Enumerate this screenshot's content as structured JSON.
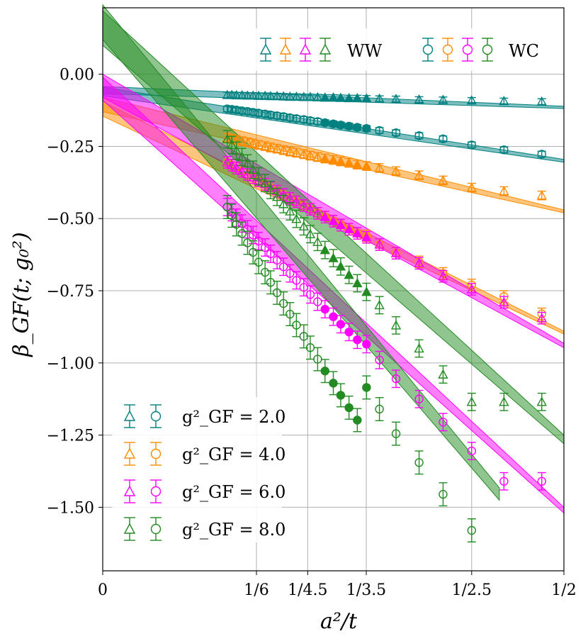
{
  "chart_data": {
    "type": "scatter",
    "title": "",
    "xlabel": "a²/t",
    "ylabel": "β_GF(t; g₀²)",
    "xlim": [
      0,
      0.5
    ],
    "ylim": [
      -1.72,
      0.23
    ],
    "grid": true,
    "x_ticks": [
      {
        "value": 0,
        "label": "0"
      },
      {
        "value": 0.16667,
        "label": "1/6"
      },
      {
        "value": 0.22222,
        "label": "1/4.5"
      },
      {
        "value": 0.28571,
        "label": "1/3.5"
      },
      {
        "value": 0.4,
        "label": "1/2.5"
      },
      {
        "value": 0.5,
        "label": "1/2"
      }
    ],
    "x_grid_extra": [
      0.16667,
      0.22222,
      0.28571,
      0.4,
      0.5
    ],
    "y_ticks": [
      {
        "value": 0.0,
        "label": "0.00"
      },
      {
        "value": -0.25,
        "label": "−0.25"
      },
      {
        "value": -0.5,
        "label": "−0.50"
      },
      {
        "value": -0.75,
        "label": "−0.75"
      },
      {
        "value": -1.0,
        "label": "−1.00"
      },
      {
        "value": -1.25,
        "label": "−1.25"
      },
      {
        "value": -1.5,
        "label": "−1.50"
      }
    ],
    "legend_top": {
      "position": "top-right",
      "ww_label": "WW",
      "wc_label": "WC",
      "colors": [
        "#008080",
        "#ff8c00",
        "#ff00ff",
        "#228b22"
      ]
    },
    "legend_bottom": {
      "position": "lower-left",
      "entries": [
        {
          "label": "g²_GF = 2.0",
          "color": "#008080"
        },
        {
          "label": "g²_GF = 4.0",
          "color": "#ff8c00"
        },
        {
          "label": "g²_GF = 6.0",
          "color": "#ff00ff"
        },
        {
          "label": "g²_GF = 8.0",
          "color": "#228b22"
        }
      ]
    },
    "series": [
      {
        "name": "g2=2.0 WW",
        "color": "#008080",
        "marker": "triangle",
        "x": [
          0.135,
          0.14,
          0.145,
          0.151,
          0.157,
          0.163,
          0.169,
          0.176,
          0.182,
          0.189,
          0.196,
          0.203,
          0.21,
          0.218,
          0.225,
          0.233,
          0.241,
          0.25,
          0.258,
          0.267,
          0.276,
          0.286,
          0.3,
          0.318,
          0.343,
          0.369,
          0.4,
          0.435,
          0.476
        ],
        "y": [
          -0.072,
          -0.072,
          -0.073,
          -0.073,
          -0.074,
          -0.074,
          -0.075,
          -0.075,
          -0.076,
          -0.076,
          -0.077,
          -0.078,
          -0.078,
          -0.079,
          -0.079,
          -0.08,
          -0.081,
          -0.081,
          -0.082,
          -0.083,
          -0.083,
          -0.084,
          -0.085,
          -0.086,
          -0.088,
          -0.089,
          -0.091,
          -0.093,
          -0.095
        ],
        "err": [
          0.01,
          0.01,
          0.01,
          0.01,
          0.01,
          0.01,
          0.01,
          0.01,
          0.01,
          0.01,
          0.01,
          0.01,
          0.01,
          0.01,
          0.01,
          0.01,
          0.01,
          0.01,
          0.01,
          0.01,
          0.01,
          0.01,
          0.01,
          0.01,
          0.01,
          0.01,
          0.01,
          0.01,
          0.01
        ],
        "filled_x_range": [
          0.24,
          0.286
        ]
      },
      {
        "name": "g2=2.0 WC",
        "color": "#008080",
        "marker": "circle",
        "x": [
          0.135,
          0.14,
          0.145,
          0.151,
          0.157,
          0.163,
          0.169,
          0.176,
          0.182,
          0.189,
          0.196,
          0.203,
          0.21,
          0.218,
          0.225,
          0.233,
          0.241,
          0.25,
          0.258,
          0.267,
          0.276,
          0.286,
          0.3,
          0.318,
          0.343,
          0.369,
          0.4,
          0.435,
          0.476
        ],
        "y": [
          -0.12,
          -0.122,
          -0.124,
          -0.127,
          -0.129,
          -0.132,
          -0.135,
          -0.138,
          -0.141,
          -0.144,
          -0.147,
          -0.151,
          -0.154,
          -0.157,
          -0.161,
          -0.164,
          -0.168,
          -0.172,
          -0.176,
          -0.18,
          -0.184,
          -0.188,
          -0.195,
          -0.203,
          -0.213,
          -0.224,
          -0.245,
          -0.262,
          -0.277
        ],
        "err": [
          0.01,
          0.01,
          0.01,
          0.01,
          0.01,
          0.01,
          0.01,
          0.01,
          0.01,
          0.01,
          0.01,
          0.01,
          0.01,
          0.01,
          0.01,
          0.01,
          0.01,
          0.01,
          0.01,
          0.01,
          0.01,
          0.01,
          0.01,
          0.01,
          0.01,
          0.01,
          0.01,
          0.01,
          0.01
        ],
        "filled_x_range": [
          0.24,
          0.286
        ]
      },
      {
        "name": "g2=4.0 WW",
        "color": "#ff8c00",
        "marker": "triangle",
        "x": [
          0.135,
          0.14,
          0.145,
          0.151,
          0.157,
          0.163,
          0.169,
          0.176,
          0.182,
          0.189,
          0.196,
          0.203,
          0.21,
          0.218,
          0.225,
          0.233,
          0.241,
          0.25,
          0.258,
          0.267,
          0.276,
          0.286,
          0.3,
          0.318,
          0.343,
          0.369,
          0.4,
          0.435,
          0.476
        ],
        "y": [
          -0.22,
          -0.224,
          -0.228,
          -0.232,
          -0.236,
          -0.24,
          -0.245,
          -0.249,
          -0.254,
          -0.258,
          -0.263,
          -0.268,
          -0.272,
          -0.277,
          -0.282,
          -0.287,
          -0.292,
          -0.297,
          -0.302,
          -0.307,
          -0.313,
          -0.318,
          -0.325,
          -0.336,
          -0.35,
          -0.368,
          -0.393,
          -0.405,
          -0.42
        ],
        "err": [
          0.015,
          0.015,
          0.015,
          0.015,
          0.015,
          0.015,
          0.015,
          0.015,
          0.015,
          0.015,
          0.015,
          0.015,
          0.015,
          0.015,
          0.015,
          0.015,
          0.015,
          0.015,
          0.015,
          0.015,
          0.015,
          0.015,
          0.015,
          0.015,
          0.015,
          0.015,
          0.015,
          0.015,
          0.015
        ],
        "filled_x_range": [
          0.24,
          0.286
        ]
      },
      {
        "name": "g2=4.0 WC",
        "color": "#ff8c00",
        "marker": "circle",
        "x": [
          0.135,
          0.14,
          0.145,
          0.151,
          0.157,
          0.163,
          0.169,
          0.176,
          0.182,
          0.189,
          0.196,
          0.203,
          0.21,
          0.218,
          0.225,
          0.233,
          0.241,
          0.25,
          0.258,
          0.267,
          0.276,
          0.286,
          0.3,
          0.318,
          0.343,
          0.369,
          0.4,
          0.435,
          0.476
        ],
        "y": [
          -0.305,
          -0.315,
          -0.325,
          -0.336,
          -0.347,
          -0.358,
          -0.369,
          -0.381,
          -0.393,
          -0.405,
          -0.417,
          -0.43,
          -0.442,
          -0.455,
          -0.468,
          -0.482,
          -0.495,
          -0.509,
          -0.523,
          -0.537,
          -0.551,
          -0.56,
          -0.59,
          -0.62,
          -0.65,
          -0.69,
          -0.73,
          -0.77,
          -0.83
        ],
        "err": [
          0.02,
          0.02,
          0.02,
          0.02,
          0.02,
          0.02,
          0.02,
          0.02,
          0.02,
          0.02,
          0.02,
          0.02,
          0.02,
          0.02,
          0.02,
          0.02,
          0.02,
          0.02,
          0.02,
          0.02,
          0.02,
          0.02,
          0.02,
          0.02,
          0.02,
          0.02,
          0.02,
          0.02,
          0.02
        ],
        "filled_x_range": [
          0.24,
          0.286
        ]
      },
      {
        "name": "g2=6.0 WW",
        "color": "#ff00ff",
        "marker": "triangle",
        "x": [
          0.135,
          0.14,
          0.145,
          0.151,
          0.157,
          0.163,
          0.169,
          0.176,
          0.182,
          0.189,
          0.196,
          0.203,
          0.21,
          0.218,
          0.225,
          0.233,
          0.241,
          0.25,
          0.258,
          0.267,
          0.276,
          0.286,
          0.3,
          0.318,
          0.343,
          0.369,
          0.4,
          0.435,
          0.476
        ],
        "y": [
          -0.305,
          -0.315,
          -0.325,
          -0.336,
          -0.347,
          -0.358,
          -0.369,
          -0.381,
          -0.393,
          -0.405,
          -0.417,
          -0.43,
          -0.442,
          -0.455,
          -0.468,
          -0.482,
          -0.495,
          -0.509,
          -0.523,
          -0.537,
          -0.551,
          -0.565,
          -0.59,
          -0.62,
          -0.655,
          -0.7,
          -0.745,
          -0.79,
          -0.845
        ],
        "err": [
          0.02,
          0.02,
          0.02,
          0.02,
          0.02,
          0.02,
          0.02,
          0.02,
          0.02,
          0.02,
          0.02,
          0.02,
          0.02,
          0.02,
          0.02,
          0.02,
          0.02,
          0.02,
          0.02,
          0.02,
          0.02,
          0.02,
          0.02,
          0.02,
          0.02,
          0.02,
          0.02,
          0.02,
          0.02
        ],
        "filled_x_range": [
          0.24,
          0.286
        ]
      },
      {
        "name": "g2=6.0 WC",
        "color": "#ff00ff",
        "marker": "circle",
        "x": [
          0.135,
          0.14,
          0.145,
          0.151,
          0.157,
          0.163,
          0.169,
          0.176,
          0.182,
          0.189,
          0.196,
          0.203,
          0.21,
          0.218,
          0.225,
          0.233,
          0.241,
          0.25,
          0.258,
          0.267,
          0.276,
          0.286,
          0.3,
          0.318,
          0.343,
          0.369,
          0.4,
          0.435,
          0.476
        ],
        "y": [
          -0.46,
          -0.478,
          -0.497,
          -0.517,
          -0.537,
          -0.557,
          -0.578,
          -0.6,
          -0.622,
          -0.644,
          -0.667,
          -0.69,
          -0.714,
          -0.738,
          -0.763,
          -0.788,
          -0.814,
          -0.84,
          -0.866,
          -0.893,
          -0.92,
          -0.935,
          -0.99,
          -1.055,
          -1.125,
          -1.205,
          -1.305,
          -1.41,
          -1.41
        ],
        "err": [
          0.03,
          0.03,
          0.03,
          0.03,
          0.03,
          0.03,
          0.03,
          0.03,
          0.03,
          0.03,
          0.03,
          0.03,
          0.03,
          0.03,
          0.03,
          0.03,
          0.03,
          0.03,
          0.03,
          0.03,
          0.03,
          0.03,
          0.03,
          0.03,
          0.03,
          0.03,
          0.03,
          0.03,
          0.03
        ],
        "filled_x_range": [
          0.24,
          0.286
        ]
      },
      {
        "name": "g2=8.0 WW",
        "color": "#228b22",
        "marker": "triangle",
        "x": [
          0.135,
          0.14,
          0.145,
          0.151,
          0.157,
          0.163,
          0.169,
          0.176,
          0.182,
          0.189,
          0.196,
          0.203,
          0.21,
          0.218,
          0.225,
          0.233,
          0.241,
          0.25,
          0.258,
          0.267,
          0.276,
          0.286,
          0.3,
          0.318,
          0.343,
          0.369,
          0.4,
          0.435,
          0.476
        ],
        "y": [
          -0.225,
          -0.245,
          -0.265,
          -0.287,
          -0.309,
          -0.331,
          -0.354,
          -0.377,
          -0.401,
          -0.425,
          -0.45,
          -0.475,
          -0.501,
          -0.527,
          -0.554,
          -0.581,
          -0.609,
          -0.637,
          -0.666,
          -0.695,
          -0.724,
          -0.754,
          -0.8,
          -0.87,
          -0.95,
          -1.04,
          -1.135,
          -1.135,
          -1.135
        ],
        "err": [
          0.03,
          0.03,
          0.03,
          0.03,
          0.03,
          0.03,
          0.03,
          0.03,
          0.03,
          0.03,
          0.03,
          0.03,
          0.03,
          0.03,
          0.03,
          0.03,
          0.03,
          0.03,
          0.03,
          0.03,
          0.03,
          0.03,
          0.03,
          0.03,
          0.03,
          0.03,
          0.03,
          0.03,
          0.03
        ],
        "filled_x_range": [
          0.24,
          0.286
        ]
      },
      {
        "name": "g2=8.0 WC",
        "color": "#228b22",
        "marker": "circle",
        "x": [
          0.135,
          0.14,
          0.145,
          0.151,
          0.157,
          0.163,
          0.169,
          0.176,
          0.182,
          0.189,
          0.196,
          0.203,
          0.21,
          0.218,
          0.225,
          0.233,
          0.241,
          0.25,
          0.258,
          0.267,
          0.276,
          0.286,
          0.3,
          0.318,
          0.343,
          0.369,
          0.4
        ],
        "y": [
          -0.46,
          -0.49,
          -0.52,
          -0.552,
          -0.584,
          -0.617,
          -0.651,
          -0.686,
          -0.721,
          -0.757,
          -0.794,
          -0.831,
          -0.869,
          -0.908,
          -0.947,
          -0.987,
          -1.028,
          -1.07,
          -1.112,
          -1.155,
          -1.198,
          -1.085,
          -1.16,
          -1.245,
          -1.345,
          -1.455,
          -1.58
        ],
        "err": [
          0.04,
          0.04,
          0.04,
          0.04,
          0.04,
          0.04,
          0.04,
          0.04,
          0.04,
          0.04,
          0.04,
          0.04,
          0.04,
          0.04,
          0.04,
          0.04,
          0.04,
          0.04,
          0.04,
          0.04,
          0.04,
          0.04,
          0.04,
          0.04,
          0.04,
          0.04,
          0.04
        ],
        "filled_x_range": [
          0.24,
          0.286
        ]
      }
    ],
    "fit_bands": [
      {
        "color": "#008080",
        "x_range": [
          0,
          0.5
        ],
        "y_at_0": -0.055,
        "y_at_half": -0.115,
        "width_at_0": 0.025,
        "width_at_half": 0.008
      },
      {
        "color": "#008080",
        "x_range": [
          0,
          0.5
        ],
        "y_at_0": -0.06,
        "y_at_half": -0.3,
        "width_at_0": 0.03,
        "width_at_half": 0.01
      },
      {
        "color": "#ff8c00",
        "x_range": [
          0,
          0.5
        ],
        "y_at_0": -0.105,
        "y_at_half": -0.475,
        "width_at_0": 0.05,
        "width_at_half": 0.01
      },
      {
        "color": "#ff8c00",
        "x_range": [
          0,
          0.5
        ],
        "y_at_0": -0.12,
        "y_at_half": -0.895,
        "width_at_0": 0.05,
        "width_at_half": 0.01
      },
      {
        "color": "#ff00ff",
        "x_range": [
          0,
          0.5
        ],
        "y_at_0": -0.04,
        "y_at_half": -0.94,
        "width_at_0": 0.08,
        "width_at_half": 0.015
      },
      {
        "color": "#ff00ff",
        "x_range": [
          0,
          0.5
        ],
        "y_at_0": -0.05,
        "y_at_half": -1.51,
        "width_at_0": 0.08,
        "width_at_half": 0.02
      },
      {
        "color": "#228b22",
        "x_range": [
          0,
          0.5
        ],
        "y_at_0": 0.16,
        "y_at_half": -1.265,
        "width_at_0": 0.12,
        "width_at_half": 0.03
      },
      {
        "color": "#228b22",
        "x_range": [
          0,
          0.43
        ],
        "y_at_0": 0.18,
        "y_at_half": -1.72,
        "width_at_0": 0.12,
        "width_at_half": 0.03
      }
    ]
  }
}
